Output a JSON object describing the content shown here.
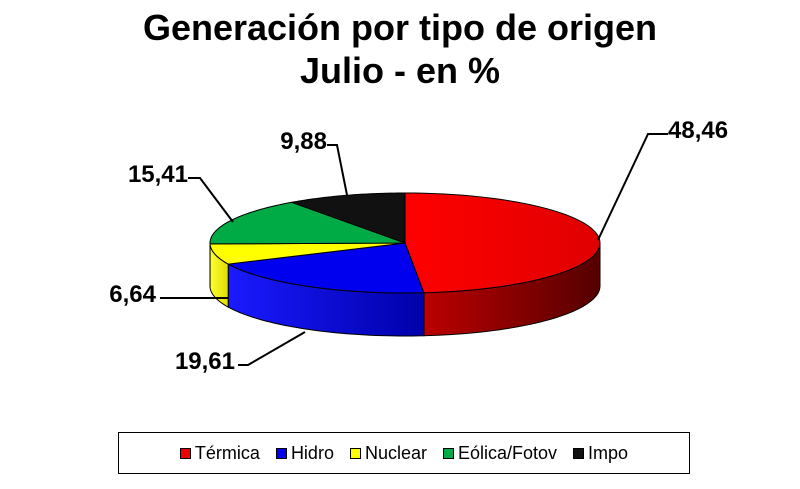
{
  "chart_data": {
    "type": "pie",
    "title": "Generación por tipo de origen",
    "subtitle": "Julio - en %",
    "categories": [
      "Térmica",
      "Hidro",
      "Nuclear",
      "Eólica/Fotov",
      "Impo"
    ],
    "values": [
      48.46,
      19.61,
      6.64,
      15.41,
      9.88
    ],
    "data_labels": [
      "48,46",
      "19,61",
      "6,64",
      "15,41",
      "9,88"
    ],
    "colors": [
      "#ee0000",
      "#0000ee",
      "#ffff00",
      "#00aa44",
      "#111111"
    ],
    "style": "3d",
    "legend": "bottom"
  }
}
